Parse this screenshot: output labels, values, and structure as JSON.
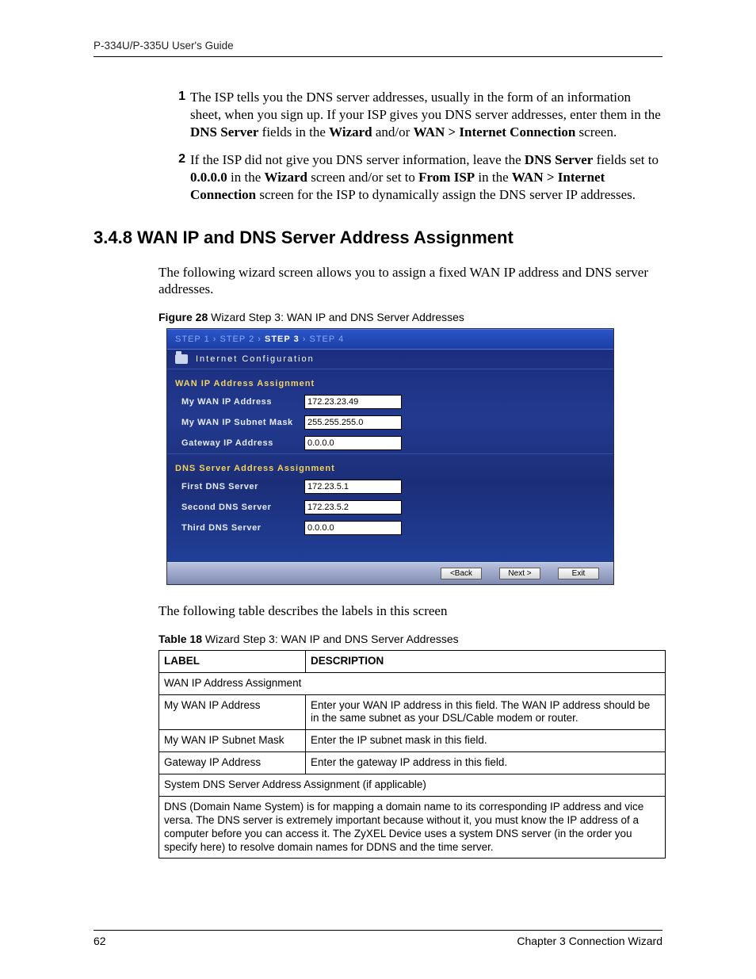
{
  "header": {
    "run": "P-334U/P-335U User's Guide"
  },
  "ol": {
    "items": [
      {
        "num": "1",
        "html": "The ISP tells you the DNS server addresses, usually in the form of an information sheet, when you sign up. If your ISP gives you DNS server addresses, enter them in the <b>DNS Server</b> fields in the <b>Wizard</b> and/or <b>WAN > Internet Connection</b> screen."
      },
      {
        "num": "2",
        "html": "If the ISP did not give you DNS server information, leave the <b>DNS Server</b> fields set to <b>0.0.0.0</b> in the <b>Wizard</b> screen and/or set to <b>From ISP</b> in the <b>WAN > Internet Connection</b> screen for the ISP to dynamically assign the DNS server IP addresses."
      }
    ]
  },
  "section": {
    "title": "3.4.8  WAN IP and DNS Server Address Assignment"
  },
  "para1": "The following wizard screen allows you to assign a fixed WAN IP address and DNS server addresses.",
  "figcap": {
    "label": "Figure 28",
    "text": "   Wizard Step 3: WAN IP and DNS Server Addresses"
  },
  "wizard": {
    "steps": [
      "STEP 1",
      "STEP 2",
      "STEP 3",
      "STEP 4"
    ],
    "current_step_index": 2,
    "title": "Internet Configuration",
    "sec1": "WAN IP Address Assignment",
    "fields1": [
      {
        "label": "My WAN IP Address",
        "value": "172.23.23.49"
      },
      {
        "label": "My WAN IP Subnet Mask",
        "value": "255.255.255.0"
      },
      {
        "label": "Gateway IP Address",
        "value": "0.0.0.0"
      }
    ],
    "sec2": "DNS Server Address Assignment",
    "fields2": [
      {
        "label": "First DNS Server",
        "value": "172.23.5.1"
      },
      {
        "label": "Second DNS Server",
        "value": "172.23.5.2"
      },
      {
        "label": "Third DNS Server",
        "value": "0.0.0.0"
      }
    ],
    "buttons": {
      "back": "<Back",
      "next": "Next >",
      "exit": "Exit"
    }
  },
  "para2": "The following table describes the labels in this screen",
  "tblcap": {
    "label": "Table 18",
    "text": "   Wizard Step 3: WAN IP and DNS Server Addresses"
  },
  "table": {
    "head": {
      "c1": "LABEL",
      "c2": "DESCRIPTION"
    },
    "rows": [
      {
        "span": true,
        "text": "WAN IP Address Assignment"
      },
      {
        "c1": "My WAN IP Address",
        "c2": "Enter your WAN IP address in this field. The WAN IP address should be in the same subnet as your DSL/Cable modem or router."
      },
      {
        "c1": "My WAN IP Subnet Mask",
        "c2": "Enter the IP subnet mask in this field."
      },
      {
        "c1": "Gateway IP Address",
        "c2": "Enter the gateway IP address in this field."
      },
      {
        "span": true,
        "text": "System DNS Server Address Assignment (if applicable)"
      },
      {
        "span": true,
        "text": "DNS (Domain Name System) is for mapping a domain name to its corresponding IP address and vice versa. The DNS server is extremely important because without it, you must know the IP address of a computer before you can access it. The ZyXEL Device uses a system DNS server (in the order you specify here) to resolve domain names for DDNS and the time server."
      }
    ]
  },
  "footer": {
    "page": "62",
    "chapter": "Chapter 3 Connection Wizard"
  }
}
